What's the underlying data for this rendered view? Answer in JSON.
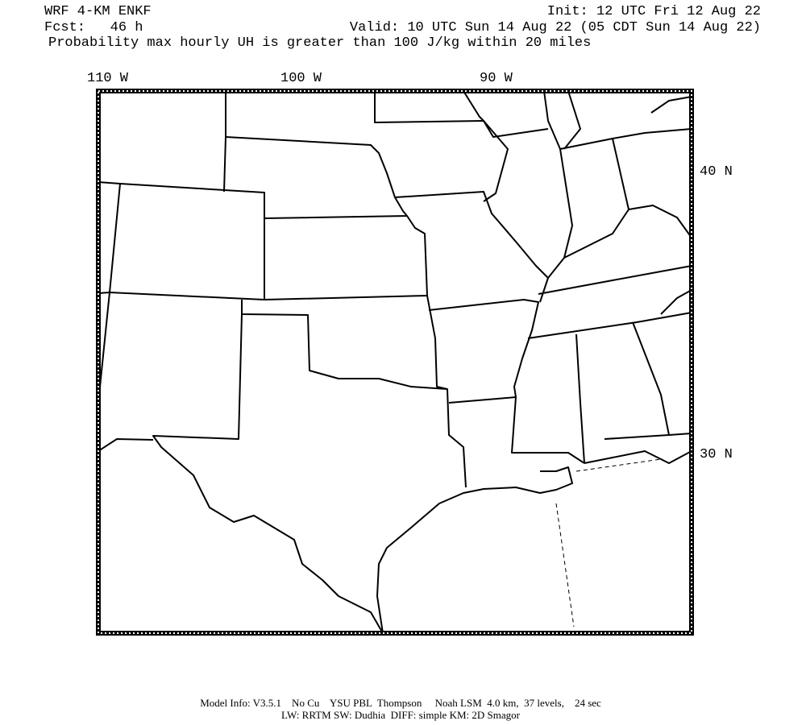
{
  "header": {
    "model": "WRF 4-KM ENKF",
    "init": "Init: 12 UTC Fri 12 Aug 22",
    "fcst": "Fcst:   46 h",
    "valid": "Valid: 10 UTC Sun 14 Aug 22 (05 CDT Sun 14 Aug 22)",
    "description": "Probability max hourly UH is greater than 100 J/kg within 20 miles"
  },
  "grid_labels": {
    "longitude": [
      "110 W",
      "100 W",
      "90 W"
    ],
    "latitude": [
      "40 N",
      "30 N"
    ]
  },
  "footer": {
    "lines": [
      "Model Info: V3.5.1    No Cu    YSU PBL  Thompson     Noah LSM  4.0 km,  37 levels,    24 sec",
      "LW: RRTM SW: Dudhia  DIFF: simple KM: 2D Smagor"
    ]
  }
}
